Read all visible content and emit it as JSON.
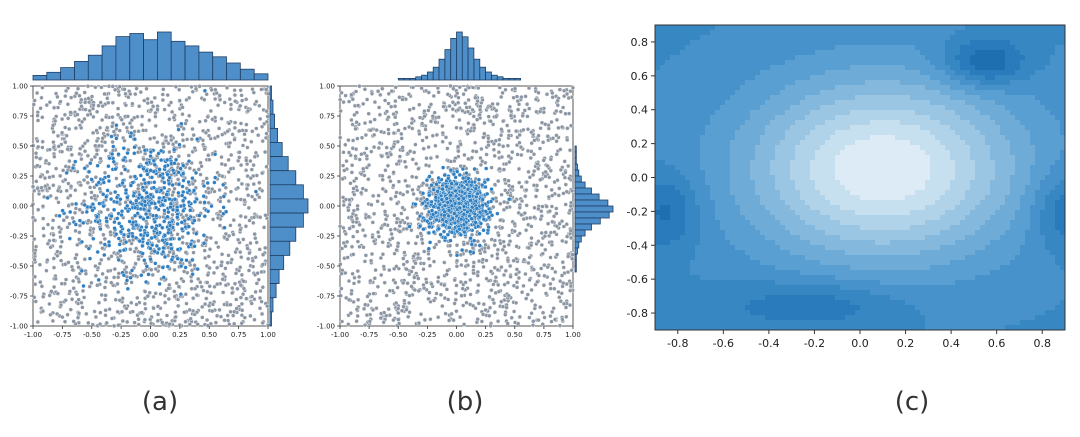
{
  "panels": [
    {
      "id": "a",
      "label": "(a)",
      "chart_data": {
        "type": "scatter",
        "xlim": [
          -1.0,
          1.0
        ],
        "ylim": [
          -1.0,
          1.0
        ],
        "x_ticks": [
          "-1.00",
          "-0.75",
          "-0.50",
          "-0.25",
          "0.00",
          "0.25",
          "0.50",
          "0.75",
          "1.00"
        ],
        "y_ticks": [
          "1.00",
          "0.75",
          "0.50",
          "0.25",
          "0.00",
          "-0.25",
          "-0.50",
          "-0.75",
          "-1.00"
        ],
        "series": [
          {
            "points": "uniform background over [-1,1]x[-1,1]",
            "color": "#8c96a3",
            "count": 1500
          },
          {
            "points": "central cluster, loosely spread",
            "color": "#2f7fc1",
            "count": 500,
            "spread": 0.28
          }
        ],
        "marginal_top": {
          "type": "histogram",
          "bins": 17,
          "counts": [
            3,
            5,
            8,
            12,
            16,
            22,
            28,
            30,
            26,
            31,
            25,
            22,
            18,
            15,
            11,
            7,
            4
          ]
        },
        "marginal_right": {
          "type": "histogram",
          "bins": 17,
          "counts": [
            1,
            2,
            3,
            5,
            8,
            12,
            17,
            22,
            25,
            22,
            17,
            13,
            9,
            6,
            4,
            2,
            1
          ]
        },
        "grid": false
      }
    },
    {
      "id": "b",
      "label": "(b)",
      "chart_data": {
        "type": "scatter",
        "xlim": [
          -1.0,
          1.0
        ],
        "ylim": [
          -1.0,
          1.0
        ],
        "x_ticks": [
          "-1.00",
          "-0.75",
          "-0.50",
          "-0.25",
          "0.00",
          "0.25",
          "0.50",
          "0.75",
          "1.00"
        ],
        "y_ticks": [
          "1.00",
          "0.75",
          "0.50",
          "0.25",
          "0.00",
          "-0.25",
          "-0.50",
          "-0.75",
          "-1.00"
        ],
        "series": [
          {
            "points": "uniform background over [-1,1]x[-1,1]",
            "color": "#8c96a3",
            "count": 1500
          },
          {
            "points": "dense central cluster",
            "color": "#2f7fc1",
            "count": 900,
            "spread": 0.12
          }
        ],
        "marginal_top": {
          "type": "histogram",
          "bins": 40,
          "counts": [
            0,
            0,
            0,
            0,
            0,
            0,
            0,
            0,
            0,
            0,
            1,
            1,
            1,
            2,
            3,
            5,
            8,
            13,
            19,
            26,
            30,
            27,
            20,
            13,
            8,
            5,
            3,
            2,
            1,
            1,
            1,
            0,
            0,
            0,
            0,
            0,
            0,
            0,
            0,
            0
          ]
        },
        "marginal_right": {
          "type": "histogram",
          "bins": 40,
          "counts": [
            0,
            0,
            0,
            0,
            0,
            0,
            0,
            0,
            0,
            0,
            1,
            1,
            1,
            2,
            3,
            5,
            8,
            13,
            19,
            26,
            30,
            27,
            20,
            13,
            8,
            5,
            3,
            2,
            1,
            1,
            1,
            0,
            0,
            0,
            0,
            0,
            0,
            0,
            0,
            0
          ]
        },
        "grid": false
      }
    },
    {
      "id": "c",
      "label": "(c)",
      "chart_data": {
        "type": "contour",
        "xlim": [
          -0.9,
          0.9
        ],
        "ylim": [
          -0.9,
          0.9
        ],
        "x_ticks": [
          "-0.8",
          "-0.6",
          "-0.4",
          "-0.2",
          "0.0",
          "0.2",
          "0.4",
          "0.6",
          "0.8"
        ],
        "y_ticks": [
          "0.8",
          "0.6",
          "0.4",
          "0.2",
          "0.0",
          "-0.2",
          "-0.4",
          "-0.6",
          "-0.8"
        ],
        "peak": [
          0.1,
          0.05
        ],
        "levels": 11,
        "colormap": "Blues",
        "grid": false
      }
    }
  ],
  "colors": {
    "background_points": "#8c96a3",
    "cluster_points": "#2f7fc1",
    "histogram_fill": "#4f8fc9",
    "histogram_edge": "#1f3f66"
  }
}
